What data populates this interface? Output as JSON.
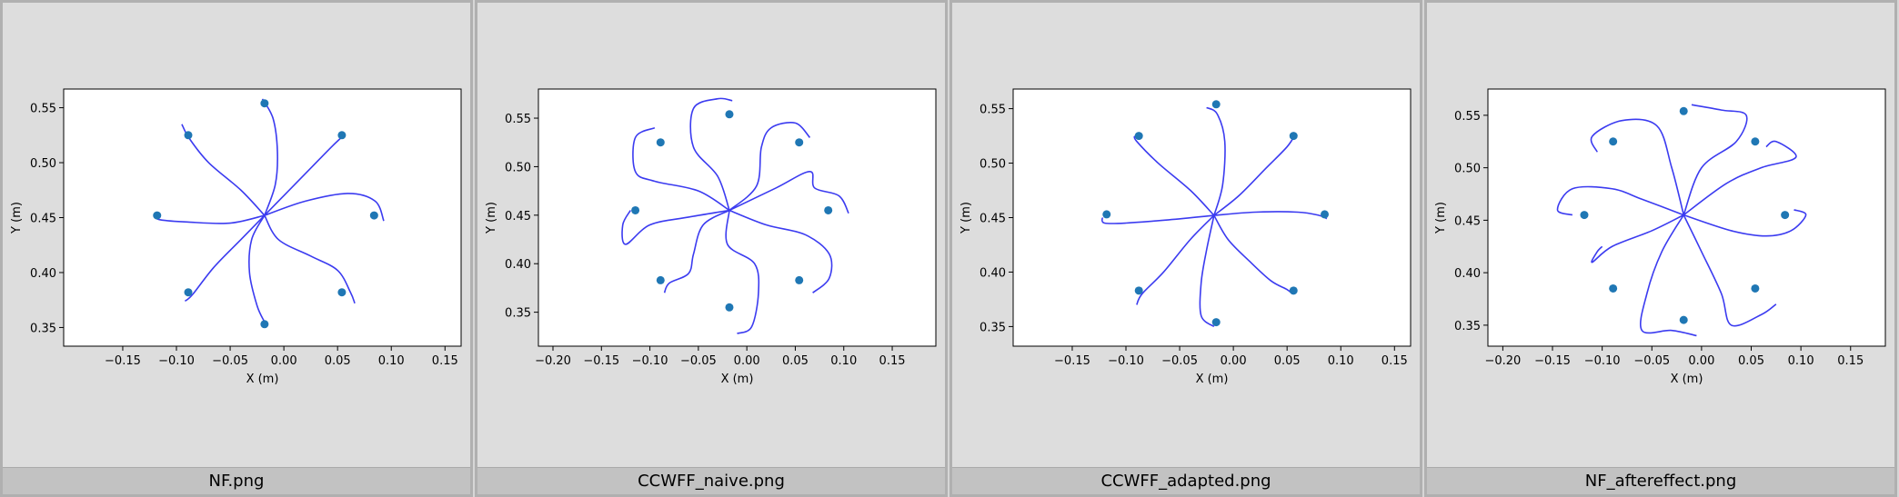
{
  "panels": [
    {
      "caption": "NF.png",
      "chart_data": {
        "type": "line",
        "xlabel": "X (m)",
        "ylabel": "Y (m)",
        "xlim": [
          -0.205,
          0.165
        ],
        "ylim": [
          0.333,
          0.567
        ],
        "xticks": [
          -0.15,
          -0.1,
          -0.05,
          0.0,
          0.05,
          0.1,
          0.15
        ],
        "xticklabels": [
          "−0.15",
          "−0.10",
          "−0.05",
          "0.00",
          "0.05",
          "0.10",
          "0.15"
        ],
        "yticks": [
          0.35,
          0.4,
          0.45,
          0.5,
          0.55
        ],
        "yticklabels": [
          "0.35",
          "0.40",
          "0.45",
          "0.50",
          "0.55"
        ],
        "targets": [
          [
            -0.018,
            0.554
          ],
          [
            0.054,
            0.525
          ],
          [
            0.084,
            0.452
          ],
          [
            0.054,
            0.382
          ],
          [
            -0.018,
            0.353
          ],
          [
            -0.089,
            0.382
          ],
          [
            -0.118,
            0.452
          ],
          [
            -0.089,
            0.525
          ]
        ],
        "trajectories": [
          [
            [
              -0.018,
              0.452
            ],
            [
              -0.008,
              0.48
            ],
            [
              -0.006,
              0.51
            ],
            [
              -0.01,
              0.54
            ],
            [
              -0.02,
              0.558
            ]
          ],
          [
            [
              -0.018,
              0.452
            ],
            [
              0.0,
              0.47
            ],
            [
              0.025,
              0.495
            ],
            [
              0.045,
              0.515
            ],
            [
              0.057,
              0.526
            ]
          ],
          [
            [
              -0.018,
              0.452
            ],
            [
              0.02,
              0.465
            ],
            [
              0.06,
              0.472
            ],
            [
              0.085,
              0.465
            ],
            [
              0.093,
              0.447
            ]
          ],
          [
            [
              -0.018,
              0.452
            ],
            [
              -0.005,
              0.43
            ],
            [
              0.025,
              0.415
            ],
            [
              0.05,
              0.402
            ],
            [
              0.062,
              0.382
            ],
            [
              0.066,
              0.372
            ]
          ],
          [
            [
              -0.018,
              0.452
            ],
            [
              -0.03,
              0.43
            ],
            [
              -0.032,
              0.4
            ],
            [
              -0.025,
              0.37
            ],
            [
              -0.018,
              0.355
            ]
          ],
          [
            [
              -0.018,
              0.452
            ],
            [
              -0.04,
              0.43
            ],
            [
              -0.065,
              0.405
            ],
            [
              -0.085,
              0.38
            ],
            [
              -0.092,
              0.374
            ]
          ],
          [
            [
              -0.018,
              0.452
            ],
            [
              -0.05,
              0.445
            ],
            [
              -0.09,
              0.446
            ],
            [
              -0.115,
              0.448
            ],
            [
              -0.12,
              0.451
            ]
          ],
          [
            [
              -0.018,
              0.452
            ],
            [
              -0.04,
              0.475
            ],
            [
              -0.07,
              0.5
            ],
            [
              -0.088,
              0.522
            ],
            [
              -0.095,
              0.535
            ]
          ]
        ]
      }
    },
    {
      "caption": "CCWFF_naive.png",
      "chart_data": {
        "type": "line",
        "xlabel": "X (m)",
        "ylabel": "Y (m)",
        "xlim": [
          -0.215,
          0.195
        ],
        "ylim": [
          0.315,
          0.58
        ],
        "xticks": [
          -0.2,
          -0.15,
          -0.1,
          -0.05,
          0.0,
          0.05,
          0.1,
          0.15
        ],
        "xticklabels": [
          "−0.20",
          "−0.15",
          "−0.10",
          "−0.05",
          "0.00",
          "0.05",
          "0.10",
          "0.15"
        ],
        "yticks": [
          0.35,
          0.4,
          0.45,
          0.5,
          0.55
        ],
        "yticklabels": [
          "0.35",
          "0.40",
          "0.45",
          "0.50",
          "0.55"
        ],
        "targets": [
          [
            -0.018,
            0.554
          ],
          [
            0.054,
            0.525
          ],
          [
            0.084,
            0.455
          ],
          [
            0.054,
            0.383
          ],
          [
            -0.018,
            0.355
          ],
          [
            -0.089,
            0.383
          ],
          [
            -0.115,
            0.455
          ],
          [
            -0.089,
            0.525
          ]
        ],
        "trajectories": [
          [
            [
              -0.018,
              0.455
            ],
            [
              -0.03,
              0.49
            ],
            [
              -0.055,
              0.52
            ],
            [
              -0.055,
              0.56
            ],
            [
              -0.03,
              0.57
            ],
            [
              -0.015,
              0.568
            ]
          ],
          [
            [
              -0.018,
              0.455
            ],
            [
              0.01,
              0.48
            ],
            [
              0.015,
              0.52
            ],
            [
              0.025,
              0.54
            ],
            [
              0.05,
              0.545
            ],
            [
              0.065,
              0.53
            ]
          ],
          [
            [
              -0.018,
              0.455
            ],
            [
              0.03,
              0.478
            ],
            [
              0.065,
              0.495
            ],
            [
              0.07,
              0.478
            ],
            [
              0.095,
              0.47
            ],
            [
              0.105,
              0.452
            ]
          ],
          [
            [
              -0.018,
              0.455
            ],
            [
              0.02,
              0.44
            ],
            [
              0.06,
              0.43
            ],
            [
              0.085,
              0.41
            ],
            [
              0.085,
              0.385
            ],
            [
              0.068,
              0.37
            ]
          ],
          [
            [
              -0.018,
              0.455
            ],
            [
              -0.02,
              0.42
            ],
            [
              0.008,
              0.4
            ],
            [
              0.012,
              0.37
            ],
            [
              0.005,
              0.335
            ],
            [
              -0.01,
              0.328
            ]
          ],
          [
            [
              -0.018,
              0.455
            ],
            [
              -0.045,
              0.44
            ],
            [
              -0.055,
              0.41
            ],
            [
              -0.06,
              0.39
            ],
            [
              -0.08,
              0.38
            ],
            [
              -0.085,
              0.37
            ]
          ],
          [
            [
              -0.018,
              0.455
            ],
            [
              -0.06,
              0.448
            ],
            [
              -0.1,
              0.44
            ],
            [
              -0.125,
              0.42
            ],
            [
              -0.128,
              0.44
            ],
            [
              -0.12,
              0.455
            ]
          ],
          [
            [
              -0.018,
              0.455
            ],
            [
              -0.05,
              0.475
            ],
            [
              -0.095,
              0.485
            ],
            [
              -0.115,
              0.495
            ],
            [
              -0.115,
              0.53
            ],
            [
              -0.095,
              0.54
            ]
          ]
        ]
      }
    },
    {
      "caption": "CCWFF_adapted.png",
      "chart_data": {
        "type": "line",
        "xlabel": "X (m)",
        "ylabel": "Y (m)",
        "xlim": [
          -0.205,
          0.165
        ],
        "ylim": [
          0.332,
          0.568
        ],
        "xticks": [
          -0.15,
          -0.1,
          -0.05,
          0.0,
          0.05,
          0.1,
          0.15
        ],
        "xticklabels": [
          "−0.15",
          "−0.10",
          "−0.05",
          "0.00",
          "0.05",
          "0.10",
          "0.15"
        ],
        "yticks": [
          0.35,
          0.4,
          0.45,
          0.5,
          0.55
        ],
        "yticklabels": [
          "0.35",
          "0.40",
          "0.45",
          "0.50",
          "0.55"
        ],
        "targets": [
          [
            -0.016,
            0.554
          ],
          [
            0.056,
            0.525
          ],
          [
            0.085,
            0.453
          ],
          [
            0.056,
            0.383
          ],
          [
            -0.016,
            0.354
          ],
          [
            -0.088,
            0.383
          ],
          [
            -0.118,
            0.453
          ],
          [
            -0.088,
            0.525
          ]
        ],
        "trajectories": [
          [
            [
              -0.018,
              0.452
            ],
            [
              -0.01,
              0.48
            ],
            [
              -0.008,
              0.52
            ],
            [
              -0.015,
              0.545
            ],
            [
              -0.025,
              0.551
            ]
          ],
          [
            [
              -0.018,
              0.452
            ],
            [
              0.005,
              0.47
            ],
            [
              0.03,
              0.495
            ],
            [
              0.05,
              0.515
            ],
            [
              0.058,
              0.527
            ]
          ],
          [
            [
              -0.018,
              0.452
            ],
            [
              0.02,
              0.455
            ],
            [
              0.06,
              0.455
            ],
            [
              0.08,
              0.452
            ],
            [
              0.087,
              0.449
            ]
          ],
          [
            [
              -0.018,
              0.452
            ],
            [
              -0.005,
              0.43
            ],
            [
              0.015,
              0.41
            ],
            [
              0.035,
              0.392
            ],
            [
              0.05,
              0.384
            ],
            [
              0.055,
              0.38
            ]
          ],
          [
            [
              -0.018,
              0.452
            ],
            [
              -0.025,
              0.42
            ],
            [
              -0.03,
              0.39
            ],
            [
              -0.03,
              0.36
            ],
            [
              -0.018,
              0.35
            ]
          ],
          [
            [
              -0.018,
              0.452
            ],
            [
              -0.04,
              0.43
            ],
            [
              -0.065,
              0.4
            ],
            [
              -0.085,
              0.38
            ],
            [
              -0.09,
              0.37
            ]
          ],
          [
            [
              -0.018,
              0.452
            ],
            [
              -0.06,
              0.448
            ],
            [
              -0.1,
              0.445
            ],
            [
              -0.12,
              0.445
            ],
            [
              -0.122,
              0.45
            ]
          ],
          [
            [
              -0.018,
              0.452
            ],
            [
              -0.04,
              0.475
            ],
            [
              -0.07,
              0.5
            ],
            [
              -0.09,
              0.52
            ],
            [
              -0.092,
              0.525
            ]
          ]
        ]
      }
    },
    {
      "caption": "NF_aftereffect.png",
      "chart_data": {
        "type": "line",
        "xlabel": "X (m)",
        "ylabel": "Y (m)",
        "xlim": [
          -0.215,
          0.185
        ],
        "ylim": [
          0.33,
          0.575
        ],
        "xticks": [
          -0.2,
          -0.15,
          -0.1,
          -0.05,
          0.0,
          0.05,
          0.1,
          0.15
        ],
        "xticklabels": [
          "−0.20",
          "−0.15",
          "−0.10",
          "−0.05",
          "0.00",
          "0.05",
          "0.10",
          "0.15"
        ],
        "yticks": [
          0.35,
          0.4,
          0.45,
          0.5,
          0.55
        ],
        "yticklabels": [
          "0.35",
          "0.40",
          "0.45",
          "0.50",
          "0.55"
        ],
        "targets": [
          [
            -0.018,
            0.554
          ],
          [
            0.054,
            0.525
          ],
          [
            0.084,
            0.455
          ],
          [
            0.054,
            0.385
          ],
          [
            -0.018,
            0.355
          ],
          [
            -0.089,
            0.385
          ],
          [
            -0.118,
            0.455
          ],
          [
            -0.089,
            0.525
          ]
        ],
        "trajectories": [
          [
            [
              -0.018,
              0.455
            ],
            [
              0.0,
              0.5
            ],
            [
              0.035,
              0.525
            ],
            [
              0.045,
              0.55
            ],
            [
              0.02,
              0.555
            ],
            [
              -0.01,
              0.56
            ]
          ],
          [
            [
              -0.018,
              0.455
            ],
            [
              0.025,
              0.485
            ],
            [
              0.06,
              0.5
            ],
            [
              0.095,
              0.51
            ],
            [
              0.075,
              0.525
            ],
            [
              0.065,
              0.52
            ]
          ],
          [
            [
              -0.018,
              0.455
            ],
            [
              0.03,
              0.44
            ],
            [
              0.065,
              0.435
            ],
            [
              0.09,
              0.44
            ],
            [
              0.105,
              0.455
            ],
            [
              0.093,
              0.46
            ]
          ],
          [
            [
              -0.018,
              0.455
            ],
            [
              0.0,
              0.42
            ],
            [
              0.02,
              0.38
            ],
            [
              0.03,
              0.35
            ],
            [
              0.06,
              0.36
            ],
            [
              0.075,
              0.37
            ]
          ],
          [
            [
              -0.018,
              0.455
            ],
            [
              -0.04,
              0.42
            ],
            [
              -0.055,
              0.38
            ],
            [
              -0.06,
              0.345
            ],
            [
              -0.03,
              0.345
            ],
            [
              -0.005,
              0.34
            ]
          ],
          [
            [
              -0.018,
              0.455
            ],
            [
              -0.05,
              0.44
            ],
            [
              -0.09,
              0.425
            ],
            [
              -0.11,
              0.41
            ],
            [
              -0.105,
              0.42
            ],
            [
              -0.1,
              0.425
            ]
          ],
          [
            [
              -0.018,
              0.455
            ],
            [
              -0.06,
              0.47
            ],
            [
              -0.09,
              0.48
            ],
            [
              -0.13,
              0.48
            ],
            [
              -0.145,
              0.46
            ],
            [
              -0.13,
              0.455
            ]
          ],
          [
            [
              -0.018,
              0.455
            ],
            [
              -0.03,
              0.5
            ],
            [
              -0.045,
              0.54
            ],
            [
              -0.08,
              0.545
            ],
            [
              -0.11,
              0.53
            ],
            [
              -0.105,
              0.515
            ]
          ]
        ]
      }
    }
  ]
}
